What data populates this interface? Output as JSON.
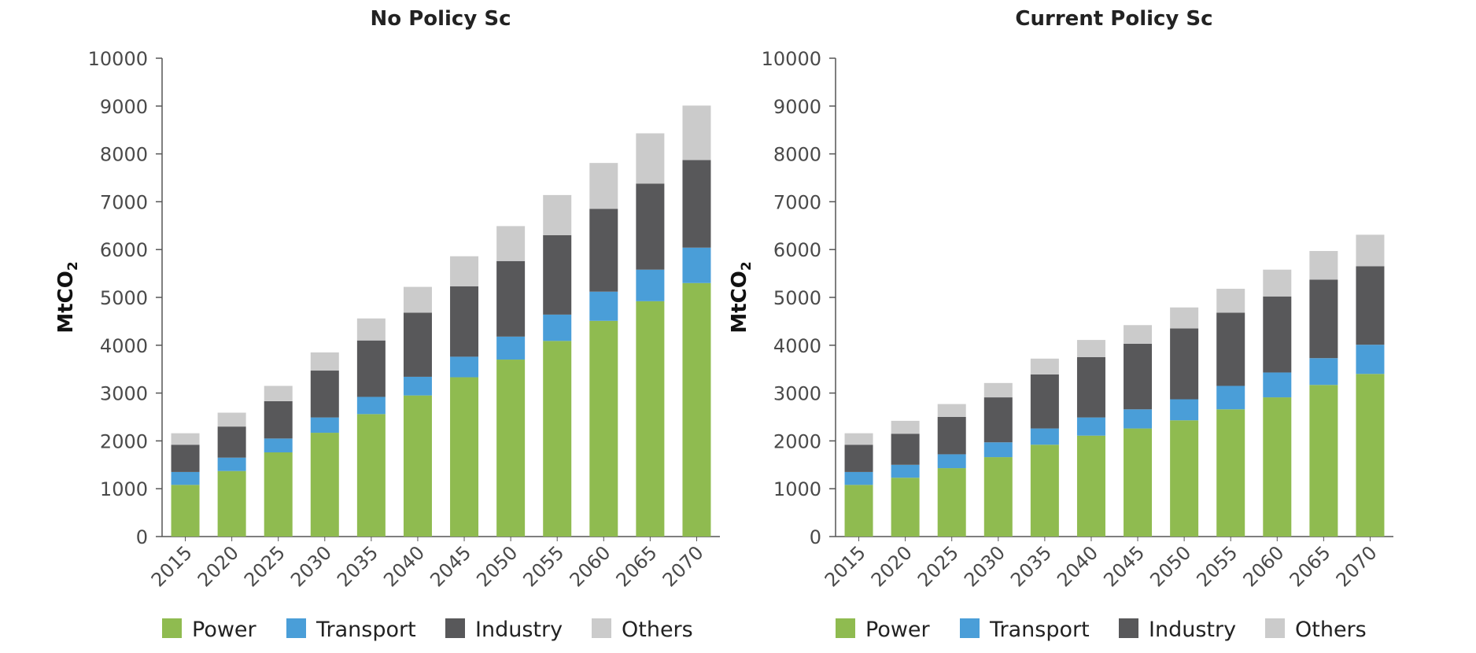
{
  "chart_data": [
    {
      "type": "bar",
      "stacked": true,
      "title": "No Policy Sc",
      "xlabel": "",
      "ylabel": "MtCO",
      "ylabel_subscript": "2",
      "ylim": [
        0,
        10000
      ],
      "yticks": [
        0,
        1000,
        2000,
        3000,
        4000,
        5000,
        6000,
        7000,
        8000,
        9000,
        10000
      ],
      "grid": false,
      "legend_position": "bottom",
      "categories": [
        "2015",
        "2020",
        "2025",
        "2030",
        "2035",
        "2040",
        "2045",
        "2050",
        "2055",
        "2060",
        "2065",
        "2070"
      ],
      "series": [
        {
          "name": "Power",
          "color": "#8fbb50",
          "values": [
            1080,
            1370,
            1760,
            2170,
            2560,
            2950,
            3330,
            3700,
            4090,
            4510,
            4920,
            5300
          ]
        },
        {
          "name": "Transport",
          "color": "#4a9ed8",
          "values": [
            270,
            280,
            290,
            320,
            360,
            390,
            430,
            480,
            550,
            610,
            660,
            740
          ]
        },
        {
          "name": "Industry",
          "color": "#58585a",
          "values": [
            570,
            650,
            780,
            980,
            1180,
            1340,
            1470,
            1580,
            1660,
            1730,
            1800,
            1830
          ]
        },
        {
          "name": "Others",
          "color": "#cbcbcb",
          "values": [
            240,
            290,
            320,
            380,
            460,
            540,
            630,
            730,
            840,
            960,
            1050,
            1140
          ]
        }
      ]
    },
    {
      "type": "bar",
      "stacked": true,
      "title": "Current Policy Sc",
      "xlabel": "",
      "ylabel": "MtCO",
      "ylabel_subscript": "2",
      "ylim": [
        0,
        10000
      ],
      "yticks": [
        0,
        1000,
        2000,
        3000,
        4000,
        5000,
        6000,
        7000,
        8000,
        9000,
        10000
      ],
      "grid": false,
      "legend_position": "bottom",
      "categories": [
        "2015",
        "2020",
        "2025",
        "2030",
        "2035",
        "2040",
        "2045",
        "2050",
        "2055",
        "2060",
        "2065",
        "2070"
      ],
      "series": [
        {
          "name": "Power",
          "color": "#8fbb50",
          "values": [
            1080,
            1230,
            1430,
            1660,
            1920,
            2110,
            2260,
            2430,
            2660,
            2910,
            3170,
            3400
          ]
        },
        {
          "name": "Transport",
          "color": "#4a9ed8",
          "values": [
            270,
            270,
            290,
            310,
            340,
            380,
            400,
            440,
            490,
            520,
            560,
            610
          ]
        },
        {
          "name": "Industry",
          "color": "#58585a",
          "values": [
            570,
            650,
            780,
            940,
            1130,
            1260,
            1370,
            1480,
            1530,
            1590,
            1640,
            1640
          ]
        },
        {
          "name": "Others",
          "color": "#cbcbcb",
          "values": [
            240,
            270,
            270,
            300,
            330,
            360,
            390,
            440,
            500,
            560,
            600,
            660
          ]
        }
      ]
    }
  ]
}
